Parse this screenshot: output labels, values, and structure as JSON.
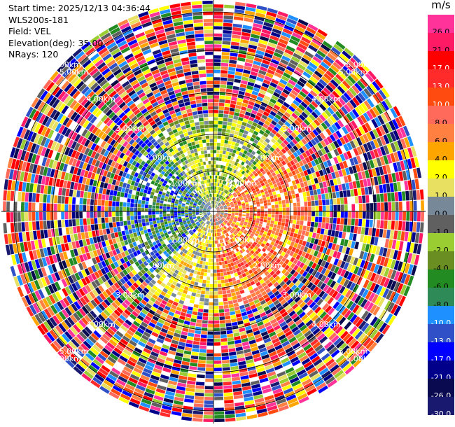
{
  "info": {
    "start_time": "Start time: 2025/12/13 04:36:44",
    "station": "WLS200s-181",
    "field": "Field: VEL",
    "elevation": "Elevation(deg): 35.00",
    "nrays": "NRays: 120"
  },
  "colorbar": {
    "unit": "m/s",
    "ticks": [
      "26.0",
      "21.0",
      "17.0",
      "13.0",
      "10.0",
      "8.0",
      "6.0",
      "4.0",
      "2.0",
      "1.0",
      "0.0",
      "-1.0",
      "-2.0",
      "-4.0",
      "-6.0",
      "-8.0",
      "-10.0",
      "-13.0",
      "-17.0",
      "-21.0",
      "-26.0",
      "-30.0"
    ],
    "colors": [
      "#ff3399",
      "#ff1a66",
      "#ff0000",
      "#ff2a2a",
      "#ff4a10",
      "#ff6a5a",
      "#ff8040",
      "#ffa500",
      "#ffff00",
      "#e8e060",
      "#778899",
      "#606060",
      "#9acd32",
      "#6b8e23",
      "#228b22",
      "#2e8b57",
      "#1e90ff",
      "#3050c8",
      "#0000ff",
      "#00008b",
      "#0a0a50",
      "#191970"
    ]
  },
  "chart_data": {
    "type": "heatmap",
    "projection": "polar-ppi",
    "field": "VEL",
    "units": "m/s",
    "elevation_deg": 35.0,
    "n_rays": 120,
    "range_ring_labels": [
      "1.00km",
      "2.00km",
      "3.00km",
      "4.00km",
      "5.00km",
      "6.00km"
    ],
    "color_range": [
      -30.0,
      26.0
    ]
  }
}
